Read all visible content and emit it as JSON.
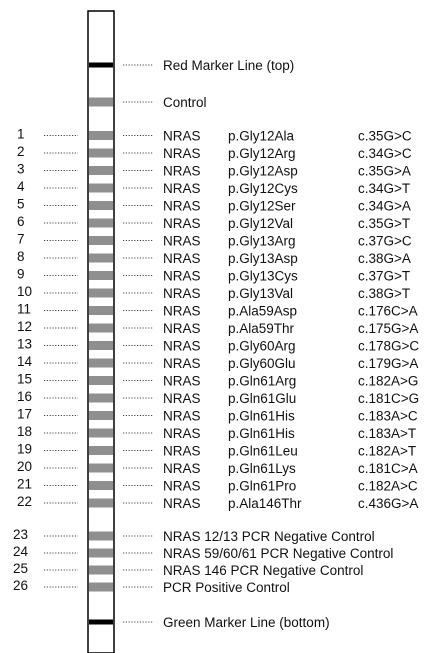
{
  "colors": {
    "band": "#8f8f8f",
    "marker": "#000000",
    "strip_border": "#000000"
  },
  "top_marker": {
    "label": "Red Marker Line (top)"
  },
  "control": {
    "label": "Control"
  },
  "probes": [
    {
      "num": "1",
      "gene": "NRAS",
      "protein": "p.Gly12Ala",
      "cdna": "c.35G>C"
    },
    {
      "num": "2",
      "gene": "NRAS",
      "protein": "p.Gly12Arg",
      "cdna": "c.34G>C"
    },
    {
      "num": "3",
      "gene": "NRAS",
      "protein": "p.Gly12Asp",
      "cdna": "c.35G>A"
    },
    {
      "num": "4",
      "gene": "NRAS",
      "protein": "p.Gly12Cys",
      "cdna": "c.34G>T"
    },
    {
      "num": "5",
      "gene": "NRAS",
      "protein": "p.Gly12Ser",
      "cdna": "c.34G>A"
    },
    {
      "num": "6",
      "gene": "NRAS",
      "protein": "p.Gly12Val",
      "cdna": "c.35G>T"
    },
    {
      "num": "7",
      "gene": "NRAS",
      "protein": "p.Gly13Arg",
      "cdna": "c.37G>C"
    },
    {
      "num": "8",
      "gene": "NRAS",
      "protein": "p.Gly13Asp",
      "cdna": "c.38G>A"
    },
    {
      "num": "9",
      "gene": "NRAS",
      "protein": "p.Gly13Cys",
      "cdna": "c.37G>T"
    },
    {
      "num": "10",
      "gene": "NRAS",
      "protein": "p.Gly13Val",
      "cdna": "c.38G>T"
    },
    {
      "num": "11",
      "gene": "NRAS",
      "protein": "p.Ala59Asp",
      "cdna": "c.176C>A"
    },
    {
      "num": "12",
      "gene": "NRAS",
      "protein": "p.Ala59Thr",
      "cdna": "c.175G>A"
    },
    {
      "num": "13",
      "gene": "NRAS",
      "protein": "p.Gly60Arg",
      "cdna": "c.178G>C"
    },
    {
      "num": "14",
      "gene": "NRAS",
      "protein": "p.Gly60Glu",
      "cdna": "c.179G>A"
    },
    {
      "num": "15",
      "gene": "NRAS",
      "protein": "p.Gln61Arg",
      "cdna": "c.182A>G"
    },
    {
      "num": "16",
      "gene": "NRAS",
      "protein": "p.Gln61Glu",
      "cdna": "c.181C>G"
    },
    {
      "num": "17",
      "gene": "NRAS",
      "protein": "p.Gln61His",
      "cdna": "c.183A>C"
    },
    {
      "num": "18",
      "gene": "NRAS",
      "protein": "p.Gln61His",
      "cdna": "c.183A>T"
    },
    {
      "num": "19",
      "gene": "NRAS",
      "protein": "p.Gln61Leu",
      "cdna": "c.182A>T"
    },
    {
      "num": "20",
      "gene": "NRAS",
      "protein": "p.Gln61Lys",
      "cdna": "c.181C>A"
    },
    {
      "num": "21",
      "gene": "NRAS",
      "protein": "p.Gln61Pro",
      "cdna": "c.182A>C"
    },
    {
      "num": "22",
      "gene": "NRAS",
      "protein": "p.Ala146Thr",
      "cdna": "c.436G>A"
    }
  ],
  "pcr_controls": [
    {
      "num": "23",
      "label": "NRAS 12/13  PCR Negative Control"
    },
    {
      "num": "24",
      "label": "NRAS 59/60/61  PCR Negative Control"
    },
    {
      "num": "25",
      "label": "NRAS 146  PCR Negative Control"
    },
    {
      "num": "26",
      "label": "PCR Positive Control"
    }
  ],
  "bottom_marker": {
    "label": "Green Marker Line (bottom)"
  }
}
